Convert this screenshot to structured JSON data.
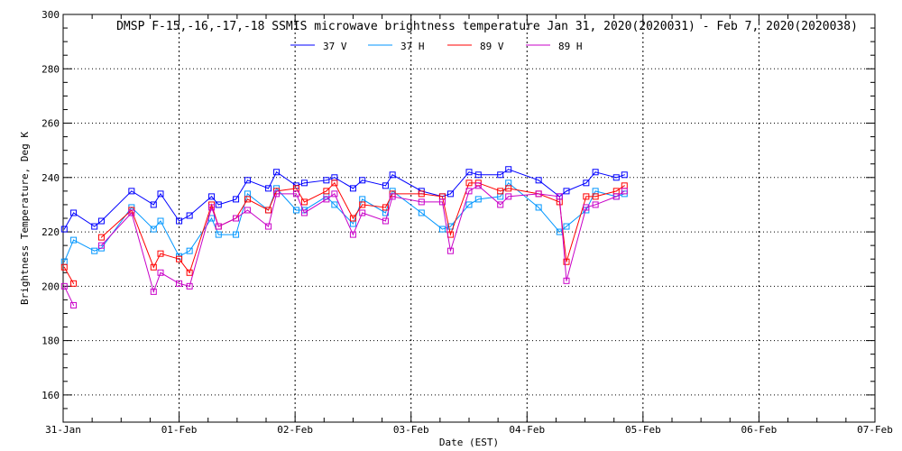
{
  "chart_data": {
    "type": "line",
    "title": "DMSP F-15,-16,-17,-18 SSMIS microwave brightness temperature Jan 31, 2020(2020031) - Feb  7, 2020(2020038)",
    "xlabel": "Date (EST)",
    "ylabel": "Brightness Temperature, Deg K",
    "ylim": [
      150,
      300
    ],
    "xlim_days_since_31jan": [
      0,
      7
    ],
    "yticks": [
      "160",
      "180",
      "200",
      "220",
      "240",
      "260",
      "280",
      "300"
    ],
    "xticks": [
      "31-Jan",
      "01-Feb",
      "02-Feb",
      "03-Feb",
      "04-Feb",
      "05-Feb",
      "06-Feb",
      "07-Feb"
    ],
    "grid": true,
    "legend_position": "top",
    "x": [
      0.01,
      0.09,
      0.27,
      0.33,
      0.59,
      0.78,
      0.84,
      1.0,
      1.09,
      1.28,
      1.34,
      1.49,
      1.59,
      1.77,
      1.84,
      2.01,
      2.08,
      2.27,
      2.34,
      2.5,
      2.58,
      2.78,
      2.84,
      3.09,
      3.27,
      3.34,
      3.5,
      3.58,
      3.77,
      3.84,
      4.1,
      4.28,
      4.34,
      4.51,
      4.59,
      4.77,
      4.84
    ],
    "series": [
      {
        "name": "37 V",
        "color": "#0000ff",
        "values": [
          221,
          227,
          222,
          224,
          235,
          230,
          234,
          224,
          226,
          233,
          230,
          232,
          239,
          236,
          242,
          237,
          238,
          239,
          240,
          236,
          239,
          237,
          241,
          235,
          233,
          234,
          242,
          241,
          241,
          243,
          239,
          233,
          235,
          238,
          242,
          240,
          241
        ]
      },
      {
        "name": "37 H",
        "color": "#0096ff",
        "values": [
          209,
          217,
          213,
          214,
          229,
          221,
          224,
          211,
          213,
          225,
          219,
          219,
          234,
          228,
          236,
          228,
          228,
          233,
          230,
          223,
          232,
          227,
          235,
          227,
          221,
          222,
          230,
          232,
          233,
          238,
          229,
          220,
          222,
          228,
          235,
          233,
          234
        ]
      },
      {
        "name": "89 V",
        "color": "#ff0000",
        "values": [
          207,
          201,
          null,
          218,
          228,
          207,
          212,
          210,
          205,
          230,
          222,
          225,
          232,
          228,
          235,
          236,
          231,
          235,
          238,
          225,
          230,
          229,
          234,
          234,
          233,
          219,
          238,
          238,
          235,
          236,
          234,
          231,
          209,
          233,
          233,
          235,
          237
        ]
      },
      {
        "name": "89 H",
        "color": "#c800c8",
        "values": [
          200,
          193,
          null,
          215,
          227,
          198,
          205,
          201,
          200,
          229,
          222,
          225,
          228,
          222,
          234,
          234,
          227,
          232,
          234,
          219,
          227,
          224,
          233,
          231,
          231,
          213,
          235,
          237,
          230,
          233,
          234,
          233,
          202,
          229,
          230,
          233,
          235
        ]
      }
    ]
  }
}
